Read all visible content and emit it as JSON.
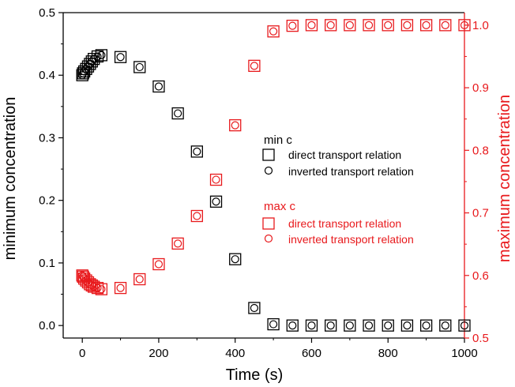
{
  "chart_data": {
    "type": "scatter",
    "xlabel": "Time (s)",
    "ylabel_left": "minimum concentration",
    "ylabel_right": "maximum concentration",
    "xlim": [
      -50,
      1000
    ],
    "ylim_left": [
      -0.02,
      0.5
    ],
    "ylim_right": [
      0.5,
      1.02
    ],
    "x_ticks": [
      0,
      200,
      400,
      600,
      800,
      1000
    ],
    "y_ticks_left": [
      0.0,
      0.1,
      0.2,
      0.3,
      0.4,
      0.5
    ],
    "y_ticks_left_labels": [
      "0.0",
      "0.1",
      "0.2",
      "0.3",
      "0.4",
      "0.5"
    ],
    "y_ticks_right": [
      0.5,
      0.6,
      0.7,
      0.8,
      0.9,
      1.0
    ],
    "y_ticks_right_labels": [
      "0.5",
      "0.6",
      "0.7",
      "0.8",
      "0.9",
      "1.0"
    ],
    "colors": {
      "min": "#000000",
      "max": "#e8191c"
    },
    "legend": {
      "groups": [
        {
          "title": "min c",
          "color": "#000000",
          "entries": [
            {
              "label": "direct transport relation",
              "marker": "square"
            },
            {
              "label": "inverted transport relation",
              "marker": "circle"
            }
          ]
        },
        {
          "title": "max c",
          "color": "#e8191c",
          "entries": [
            {
              "label": "direct transport relation",
              "marker": "square"
            },
            {
              "label": "inverted transport relation",
              "marker": "circle"
            }
          ]
        }
      ]
    },
    "series": [
      {
        "name": "direct transport relation",
        "group": "min c",
        "axis": "left",
        "marker": "square",
        "x": [
          0,
          2,
          5,
          10,
          15,
          20,
          25,
          30,
          40,
          50,
          100,
          150,
          200,
          250,
          300,
          350,
          400,
          450,
          500,
          550,
          600,
          650,
          700,
          750,
          800,
          850,
          900,
          950,
          1000
        ],
        "y": [
          0.4,
          0.403,
          0.406,
          0.41,
          0.414,
          0.418,
          0.422,
          0.426,
          0.43,
          0.432,
          0.429,
          0.413,
          0.382,
          0.339,
          0.278,
          0.198,
          0.106,
          0.028,
          0.002,
          0.0,
          0.0,
          0.0,
          0.0,
          0.0,
          0.0,
          0.0,
          0.0,
          0.0,
          0.0
        ]
      },
      {
        "name": "inverted transport relation",
        "group": "min c",
        "axis": "left",
        "marker": "circle",
        "x": [
          0,
          2,
          5,
          10,
          15,
          20,
          25,
          30,
          40,
          50,
          100,
          150,
          200,
          250,
          300,
          350,
          400,
          450,
          500,
          550,
          600,
          650,
          700,
          750,
          800,
          850,
          900,
          950,
          1000
        ],
        "y": [
          0.4,
          0.403,
          0.406,
          0.41,
          0.414,
          0.418,
          0.422,
          0.426,
          0.43,
          0.432,
          0.429,
          0.413,
          0.382,
          0.339,
          0.278,
          0.198,
          0.106,
          0.028,
          0.002,
          0.0,
          0.0,
          0.0,
          0.0,
          0.0,
          0.0,
          0.0,
          0.0,
          0.0,
          0.0
        ]
      },
      {
        "name": "direct transport relation",
        "group": "max c",
        "axis": "right",
        "marker": "square",
        "x": [
          0,
          2,
          5,
          10,
          15,
          20,
          25,
          30,
          40,
          50,
          100,
          150,
          200,
          250,
          300,
          350,
          400,
          450,
          500,
          550,
          600,
          650,
          700,
          750,
          800,
          850,
          900,
          950,
          1000
        ],
        "y": [
          0.6,
          0.598,
          0.595,
          0.592,
          0.589,
          0.586,
          0.584,
          0.582,
          0.58,
          0.578,
          0.58,
          0.594,
          0.618,
          0.651,
          0.695,
          0.753,
          0.84,
          0.935,
          0.99,
          0.999,
          1.0,
          1.0,
          1.0,
          1.0,
          1.0,
          1.0,
          1.0,
          1.0,
          1.0
        ]
      },
      {
        "name": "inverted transport relation",
        "group": "max c",
        "axis": "right",
        "marker": "circle",
        "x": [
          0,
          2,
          5,
          10,
          15,
          20,
          25,
          30,
          40,
          50,
          100,
          150,
          200,
          250,
          300,
          350,
          400,
          450,
          500,
          550,
          600,
          650,
          700,
          750,
          800,
          850,
          900,
          950,
          1000
        ],
        "y": [
          0.6,
          0.598,
          0.595,
          0.592,
          0.589,
          0.586,
          0.584,
          0.582,
          0.58,
          0.578,
          0.58,
          0.594,
          0.618,
          0.651,
          0.695,
          0.753,
          0.84,
          0.935,
          0.99,
          0.999,
          1.0,
          1.0,
          1.0,
          1.0,
          1.0,
          1.0,
          1.0,
          1.0,
          1.0
        ]
      }
    ]
  }
}
